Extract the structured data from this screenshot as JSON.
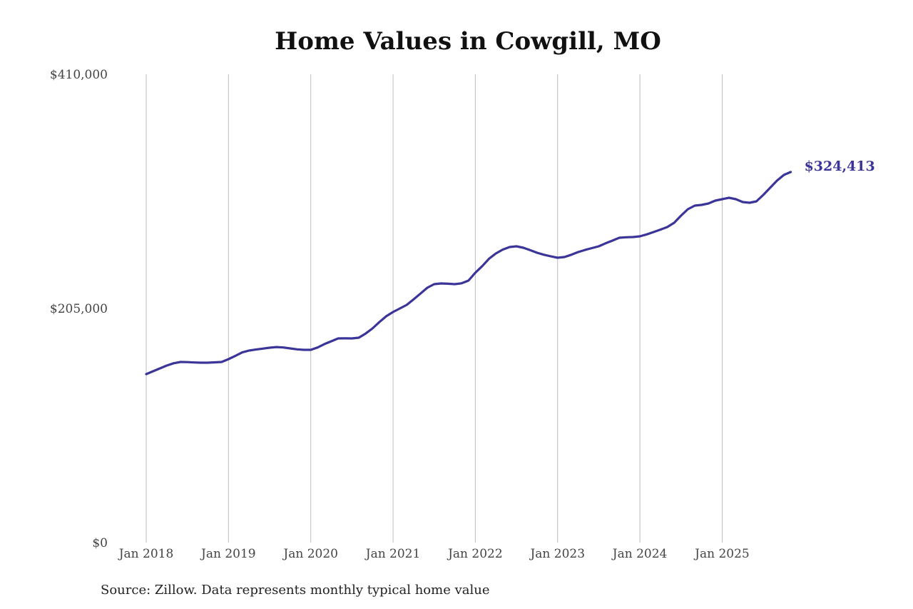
{
  "chart_data": {
    "type": "line",
    "title": "Home Values in Cowgill, MO",
    "source": "Source: Zillow. Data represents monthly typical home value",
    "xlabel": "",
    "ylabel": "",
    "ylim": [
      0,
      410000
    ],
    "y_ticks": [
      0,
      205000,
      410000
    ],
    "y_tick_labels": [
      "$0",
      "$205,000",
      "$410,000"
    ],
    "x_tick_labels": [
      "Jan 2018",
      "Jan 2019",
      "Jan 2020",
      "Jan 2021",
      "Jan 2022",
      "Jan 2023",
      "Jan 2024",
      "Jan 2025"
    ],
    "x_start": "2018-01",
    "x_end": "2025-11",
    "grid": "vertical at each January",
    "line_color": "#3b3499",
    "end_label": "$324,413",
    "series": [
      {
        "values": [
          147500,
          150000,
          152500,
          155000,
          157000,
          158100,
          158000,
          157700,
          157500,
          157500,
          157800,
          158100,
          160600,
          163500,
          166500,
          168100,
          169000,
          169800,
          170600,
          171200,
          170800,
          170000,
          169200,
          168750,
          168750,
          170800,
          173800,
          176250,
          178750,
          178800,
          178750,
          179400,
          183000,
          187500,
          193000,
          198100,
          201900,
          205000,
          208100,
          213000,
          218000,
          223100,
          226250,
          226900,
          226600,
          226250,
          227000,
          229400,
          236250,
          242000,
          248500,
          253100,
          256500,
          258750,
          259400,
          258100,
          256000,
          253750,
          252000,
          250600,
          249400,
          250000,
          252000,
          254400,
          256200,
          257800,
          259400,
          262000,
          264400,
          266900,
          267300,
          267500,
          268100,
          269800,
          271900,
          274000,
          276250,
          280000,
          286250,
          291900,
          295000,
          295600,
          296900,
          299400,
          300600,
          301900,
          300600,
          298100,
          297500,
          298750,
          304400,
          310600,
          316900,
          321900,
          324413
        ]
      }
    ]
  }
}
